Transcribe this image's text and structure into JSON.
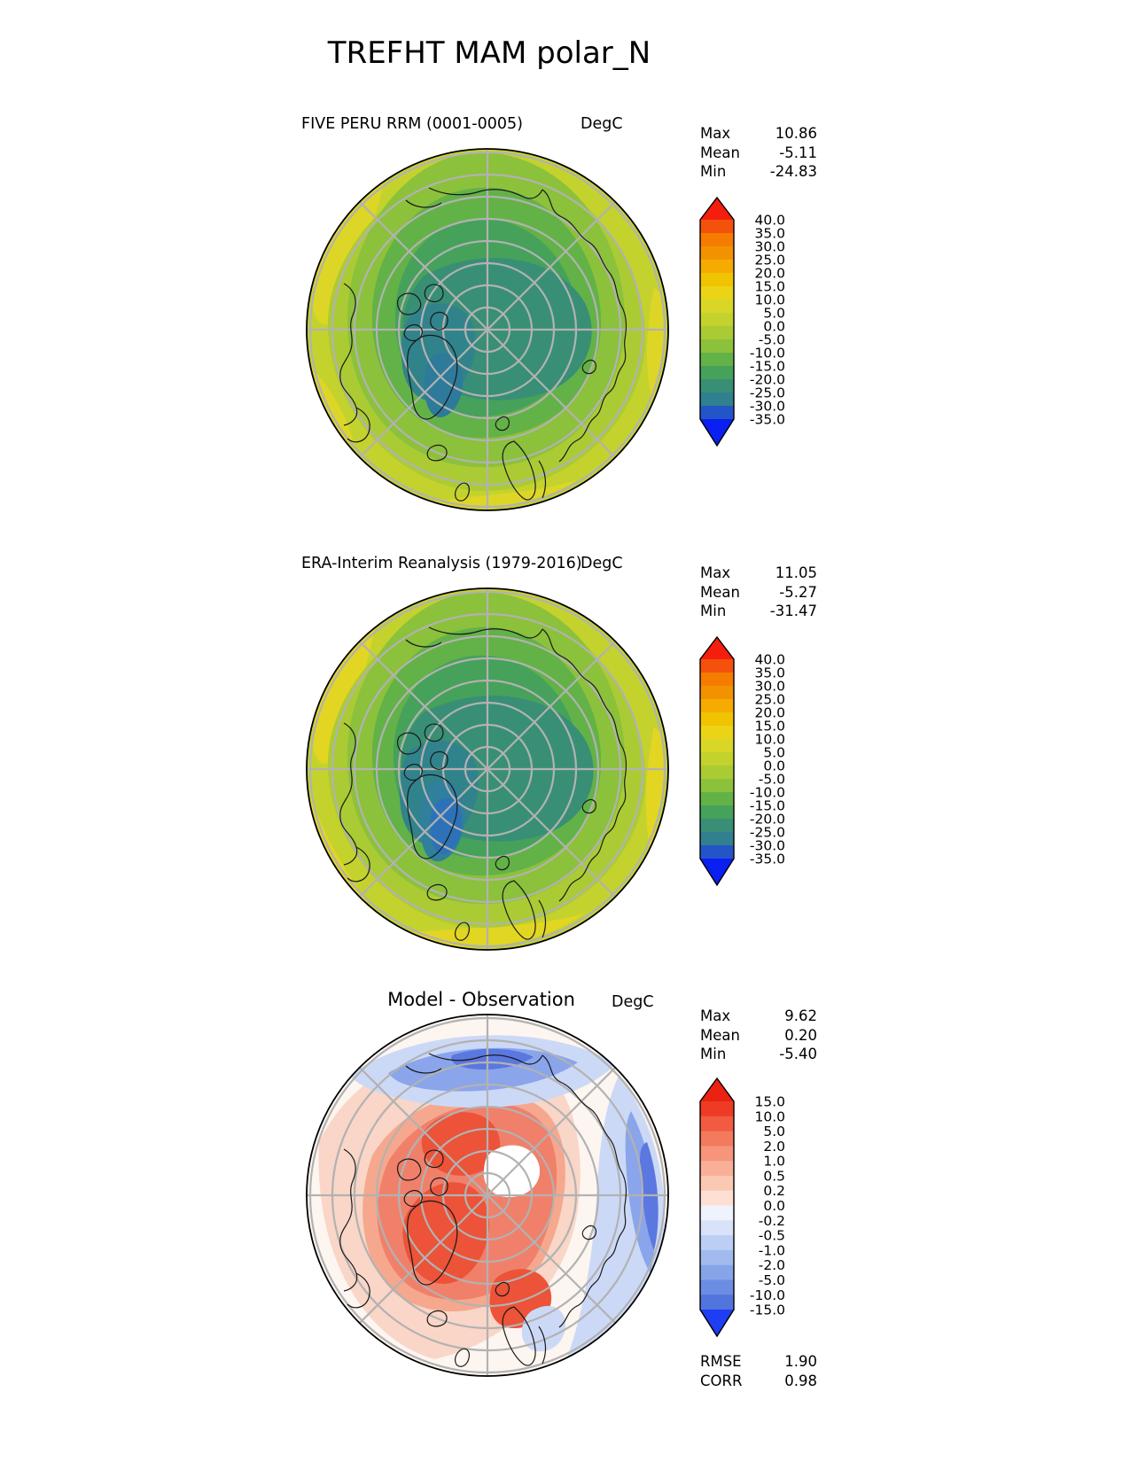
{
  "title": "TREFHT MAM polar_N",
  "panels": [
    {
      "id": "model",
      "title": "FIVE PERU RRM (0001-0005)",
      "units": "DegC",
      "stats": [
        {
          "label": "Max",
          "value": "10.86"
        },
        {
          "label": "Mean",
          "value": "-5.11"
        },
        {
          "label": "Min",
          "value": "-24.83"
        }
      ],
      "colorbar": {
        "labels": [
          "40.0",
          "35.0",
          "30.0",
          "25.0",
          "20.0",
          "15.0",
          "10.0",
          "5.0",
          "0.0",
          "-5.0",
          "-10.0",
          "-15.0",
          "-20.0",
          "-25.0",
          "-30.0",
          "-35.0"
        ],
        "colors": [
          "#f4510c",
          "#f57c00",
          "#f39200",
          "#f5ab00",
          "#f0c400",
          "#ebd316",
          "#d8d727",
          "#c4d22e",
          "#abcb34",
          "#8cc13c",
          "#63b247",
          "#46a15b",
          "#388f75",
          "#30808f",
          "#2455c8"
        ],
        "arrow_top": "#f51d0d",
        "arrow_bottom": "#0a1ff2"
      },
      "map_colors": {
        "base": "#c4d22e",
        "rim_yellow": "#ddd626",
        "ring1": "#abcb34",
        "ring2": "#8cc13c",
        "ring3": "#63b247",
        "inner": "#46a15b",
        "center": "#388f75",
        "teal": "#31838b",
        "core": "#2d7a9b"
      }
    },
    {
      "id": "obs",
      "title": "ERA-Interim Reanalysis (1979-2016)",
      "units": "DegC",
      "stats": [
        {
          "label": "Max",
          "value": "11.05"
        },
        {
          "label": "Mean",
          "value": "-5.27"
        },
        {
          "label": "Min",
          "value": "-31.47"
        }
      ],
      "colorbar": {
        "labels": [
          "40.0",
          "35.0",
          "30.0",
          "25.0",
          "20.0",
          "15.0",
          "10.0",
          "5.0",
          "0.0",
          "-5.0",
          "-10.0",
          "-15.0",
          "-20.0",
          "-25.0",
          "-30.0",
          "-35.0"
        ],
        "colors": [
          "#f4510c",
          "#f57c00",
          "#f39200",
          "#f5ab00",
          "#f0c400",
          "#ebd316",
          "#d8d727",
          "#c4d22e",
          "#abcb34",
          "#8cc13c",
          "#63b247",
          "#46a15b",
          "#388f75",
          "#30808f",
          "#2455c8"
        ],
        "arrow_top": "#f51d0d",
        "arrow_bottom": "#0a1ff2"
      },
      "map_colors": {
        "base": "#c4d22e",
        "rim_yellow": "#e2d622",
        "ring1": "#abcb34",
        "ring2": "#8cc13c",
        "ring3": "#63b247",
        "inner": "#46a15b",
        "center": "#388f75",
        "teal": "#31838b",
        "core": "#2f7f9d",
        "blue_core": "#2d72b8"
      }
    },
    {
      "id": "diff",
      "title": "Model - Observation",
      "units": "DegC",
      "stats": [
        {
          "label": "Max",
          "value": "9.62"
        },
        {
          "label": "Mean",
          "value": "0.20"
        },
        {
          "label": "Min",
          "value": "-5.40"
        }
      ],
      "extra_stats": [
        {
          "label": "RMSE",
          "value": "1.90"
        },
        {
          "label": "CORR",
          "value": "0.98"
        }
      ],
      "colorbar": {
        "labels": [
          "15.0",
          "10.0",
          "5.0",
          "2.0",
          "1.0",
          "0.5",
          "0.2",
          "0.0",
          "-0.2",
          "-0.5",
          "-1.0",
          "-2.0",
          "-5.0",
          "-10.0",
          "-15.0"
        ],
        "colors": [
          "#ee3b25",
          "#f15b41",
          "#f47a5d",
          "#f6957a",
          "#f9af97",
          "#fbc8b4",
          "#fde0d3",
          "#eef3fc",
          "#d8e2f8",
          "#bccef3",
          "#a2baee",
          "#87a4e9",
          "#6c8de3",
          "#5174dd"
        ],
        "arrow_top": "#eb2112",
        "arrow_bottom": "#1f3df2"
      },
      "map_colors": {
        "base": "#fdf5f0",
        "pale_pink": "#f9d6c7",
        "pink": "#f5a88e",
        "red": "#f0806a",
        "red_core": "#ec5338",
        "pale_blue": "#ccd9f6",
        "blue": "#8aa5ea",
        "blue_core": "#5b77e0",
        "white_zero": "#ffffff"
      }
    }
  ],
  "chart_data": [
    {
      "type": "heatmap",
      "title": "FIVE PERU RRM (0001-0005)",
      "subtitle_figure": "TREFHT MAM polar_N",
      "units": "DegC",
      "projection": "north_polar_stereographic",
      "levels": [
        -35,
        -30,
        -25,
        -20,
        -15,
        -10,
        -5,
        0,
        5,
        10,
        15,
        20,
        25,
        30,
        35,
        40
      ],
      "stats": {
        "max": 10.86,
        "mean": -5.11,
        "min": -24.83
      },
      "legend_position": "right"
    },
    {
      "type": "heatmap",
      "title": "ERA-Interim Reanalysis (1979-2016)",
      "units": "DegC",
      "projection": "north_polar_stereographic",
      "levels": [
        -35,
        -30,
        -25,
        -20,
        -15,
        -10,
        -5,
        0,
        5,
        10,
        15,
        20,
        25,
        30,
        35,
        40
      ],
      "stats": {
        "max": 11.05,
        "mean": -5.27,
        "min": -31.47
      },
      "legend_position": "right"
    },
    {
      "type": "heatmap",
      "title": "Model - Observation",
      "units": "DegC",
      "projection": "north_polar_stereographic",
      "levels": [
        -15,
        -10,
        -5,
        -2,
        -1,
        -0.5,
        -0.2,
        0,
        0.2,
        0.5,
        1,
        2,
        5,
        10,
        15
      ],
      "stats": {
        "max": 9.62,
        "mean": 0.2,
        "min": -5.4,
        "rmse": 1.9,
        "corr": 0.98
      },
      "legend_position": "right"
    }
  ]
}
